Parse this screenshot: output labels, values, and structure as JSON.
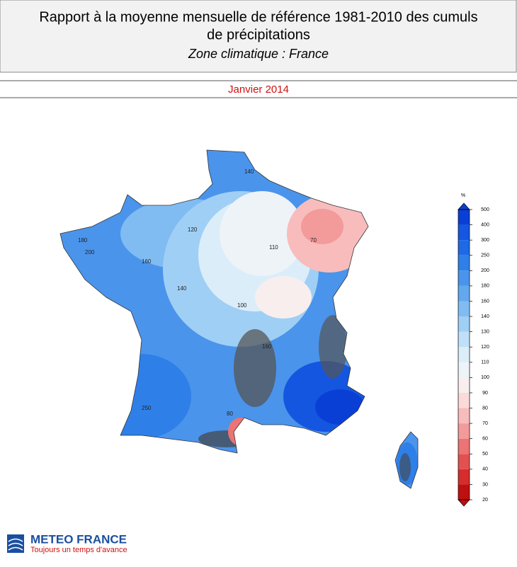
{
  "header": {
    "title_line1": "Rapport à la moyenne mensuelle de référence 1981-2010 des cumuls",
    "title_line2": "de précipitations",
    "subtitle": "Zone climatique : France",
    "period": "Janvier 2014"
  },
  "colorbar": {
    "unit": "%",
    "ticks": [
      20,
      30,
      40,
      50,
      60,
      70,
      80,
      90,
      100,
      110,
      120,
      130,
      140,
      160,
      180,
      200,
      250,
      300,
      400,
      500
    ],
    "colors": [
      "#c00f0f",
      "#d52d2d",
      "#e35050",
      "#ec7474",
      "#f39a9a",
      "#f8bcbc",
      "#fbdada",
      "#f8eeee",
      "#eef3f8",
      "#dcedfa",
      "#bfe0f8",
      "#a0cff5",
      "#80bcf2",
      "#63a8ef",
      "#4a94ec",
      "#2f7fe8",
      "#1e6ae6",
      "#1456e0",
      "#0a3fd6"
    ]
  },
  "map_labels": [
    "140",
    "180",
    "200",
    "160",
    "140",
    "120",
    "100",
    "110",
    "70",
    "250",
    "160",
    "80"
  ],
  "logo": {
    "name": "METEO FRANCE",
    "slogan": "Toujours un temps d'avance"
  }
}
